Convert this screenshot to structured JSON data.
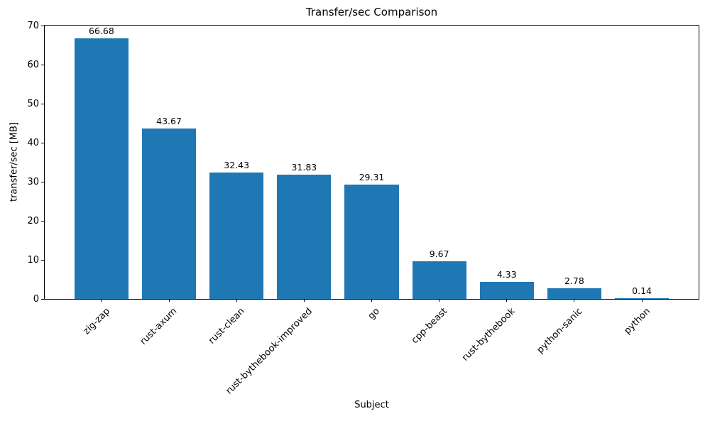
{
  "chart_data": {
    "type": "bar",
    "title": "Transfer/sec Comparison",
    "xlabel": "Subject",
    "ylabel": "transfer/sec [MB]",
    "categories": [
      "zig-zap",
      "rust-axum",
      "rust-clean",
      "rust-bythebook-improved",
      "go",
      "cpp-beast",
      "rust-bythebook",
      "python-sanic",
      "python"
    ],
    "values": [
      66.68,
      43.67,
      32.43,
      31.83,
      29.31,
      9.67,
      4.33,
      2.78,
      0.14
    ],
    "value_labels": [
      "66.68",
      "43.67",
      "32.43",
      "31.83",
      "29.31",
      "9.67",
      "4.33",
      "2.78",
      "0.14"
    ],
    "ylim": [
      0,
      70
    ],
    "yticks": [
      0,
      10,
      20,
      30,
      40,
      50,
      60,
      70
    ],
    "bar_color": "#1f77b4",
    "bar_width_fraction": 0.8,
    "x_pad_units": 0.84,
    "grid": false,
    "legend": "none"
  }
}
